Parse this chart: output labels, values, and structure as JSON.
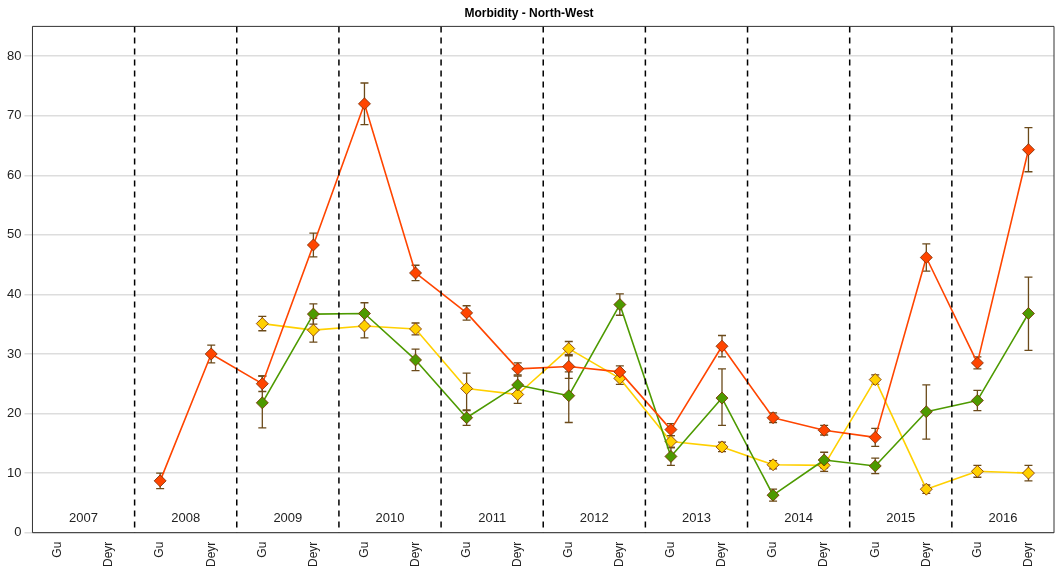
{
  "chart_data": {
    "type": "line",
    "title": "Morbidity - North-West",
    "categories": [
      "Gu",
      "Deyr",
      "Gu",
      "Deyr",
      "Gu",
      "Deyr",
      "Gu",
      "Deyr",
      "Gu",
      "Deyr",
      "Gu",
      "Deyr",
      "Gu",
      "Deyr",
      "Gu",
      "Deyr",
      "Gu",
      "Deyr",
      "Gu",
      "Deyr"
    ],
    "series": [
      {
        "color": "#ff4500",
        "values": [
          null,
          null,
          8.7,
          30,
          25,
          48.3,
          72,
          43.6,
          36.9,
          27.5,
          27.9,
          27,
          17.3,
          31.3,
          19.3,
          17.2,
          16,
          46.2,
          28.5,
          64.3
        ],
        "errors": [
          null,
          null,
          1.3,
          1.5,
          1.3,
          2,
          3.5,
          1.3,
          1.2,
          1,
          2,
          1,
          1,
          1.8,
          0.8,
          0.8,
          1.5,
          2.3,
          1,
          3.7
        ]
      },
      {
        "color": "#4d9a00",
        "values": [
          null,
          null,
          null,
          null,
          21.8,
          36.7,
          36.8,
          29,
          19.3,
          24.8,
          23,
          38.3,
          12.8,
          22.6,
          6.3,
          12.2,
          11.2,
          20.3,
          22.2,
          36.8
        ],
        "errors": [
          null,
          null,
          null,
          null,
          [
            17.6,
            26.3
          ],
          1.7,
          1.8,
          1.8,
          1.3,
          1.5,
          [
            18.5,
            27
          ],
          1.8,
          1.5,
          [
            18,
            27.5
          ],
          1,
          1.3,
          1.3,
          [
            15.7,
            24.8
          ],
          1.7,
          [
            30.6,
            42.9
          ]
        ]
      },
      {
        "color": "#ffd000",
        "values": [
          null,
          null,
          null,
          null,
          35.1,
          34,
          34.7,
          34.2,
          24.2,
          23.2,
          30.9,
          25.9,
          15.3,
          14.4,
          11.4,
          11.3,
          25.7,
          7.3,
          10.3,
          10
        ],
        "errors": [
          null,
          null,
          null,
          null,
          1.2,
          2,
          2,
          1,
          [
            20.5,
            26.8
          ],
          1.5,
          1.2,
          1,
          1,
          0.8,
          0.7,
          1,
          0.8,
          0.7,
          1,
          1.3
        ]
      }
    ],
    "annotations": [
      "2007",
      "2008",
      "2009",
      "2010",
      "2011",
      "2012",
      "2013",
      "2014",
      "2015",
      "2016"
    ],
    "ylim": [
      0,
      85
    ],
    "yticks": [
      0,
      10,
      20,
      30,
      40,
      50,
      60,
      70,
      80
    ],
    "grid": "y",
    "legend": false,
    "marker": "diamond",
    "line_style": "solid"
  }
}
